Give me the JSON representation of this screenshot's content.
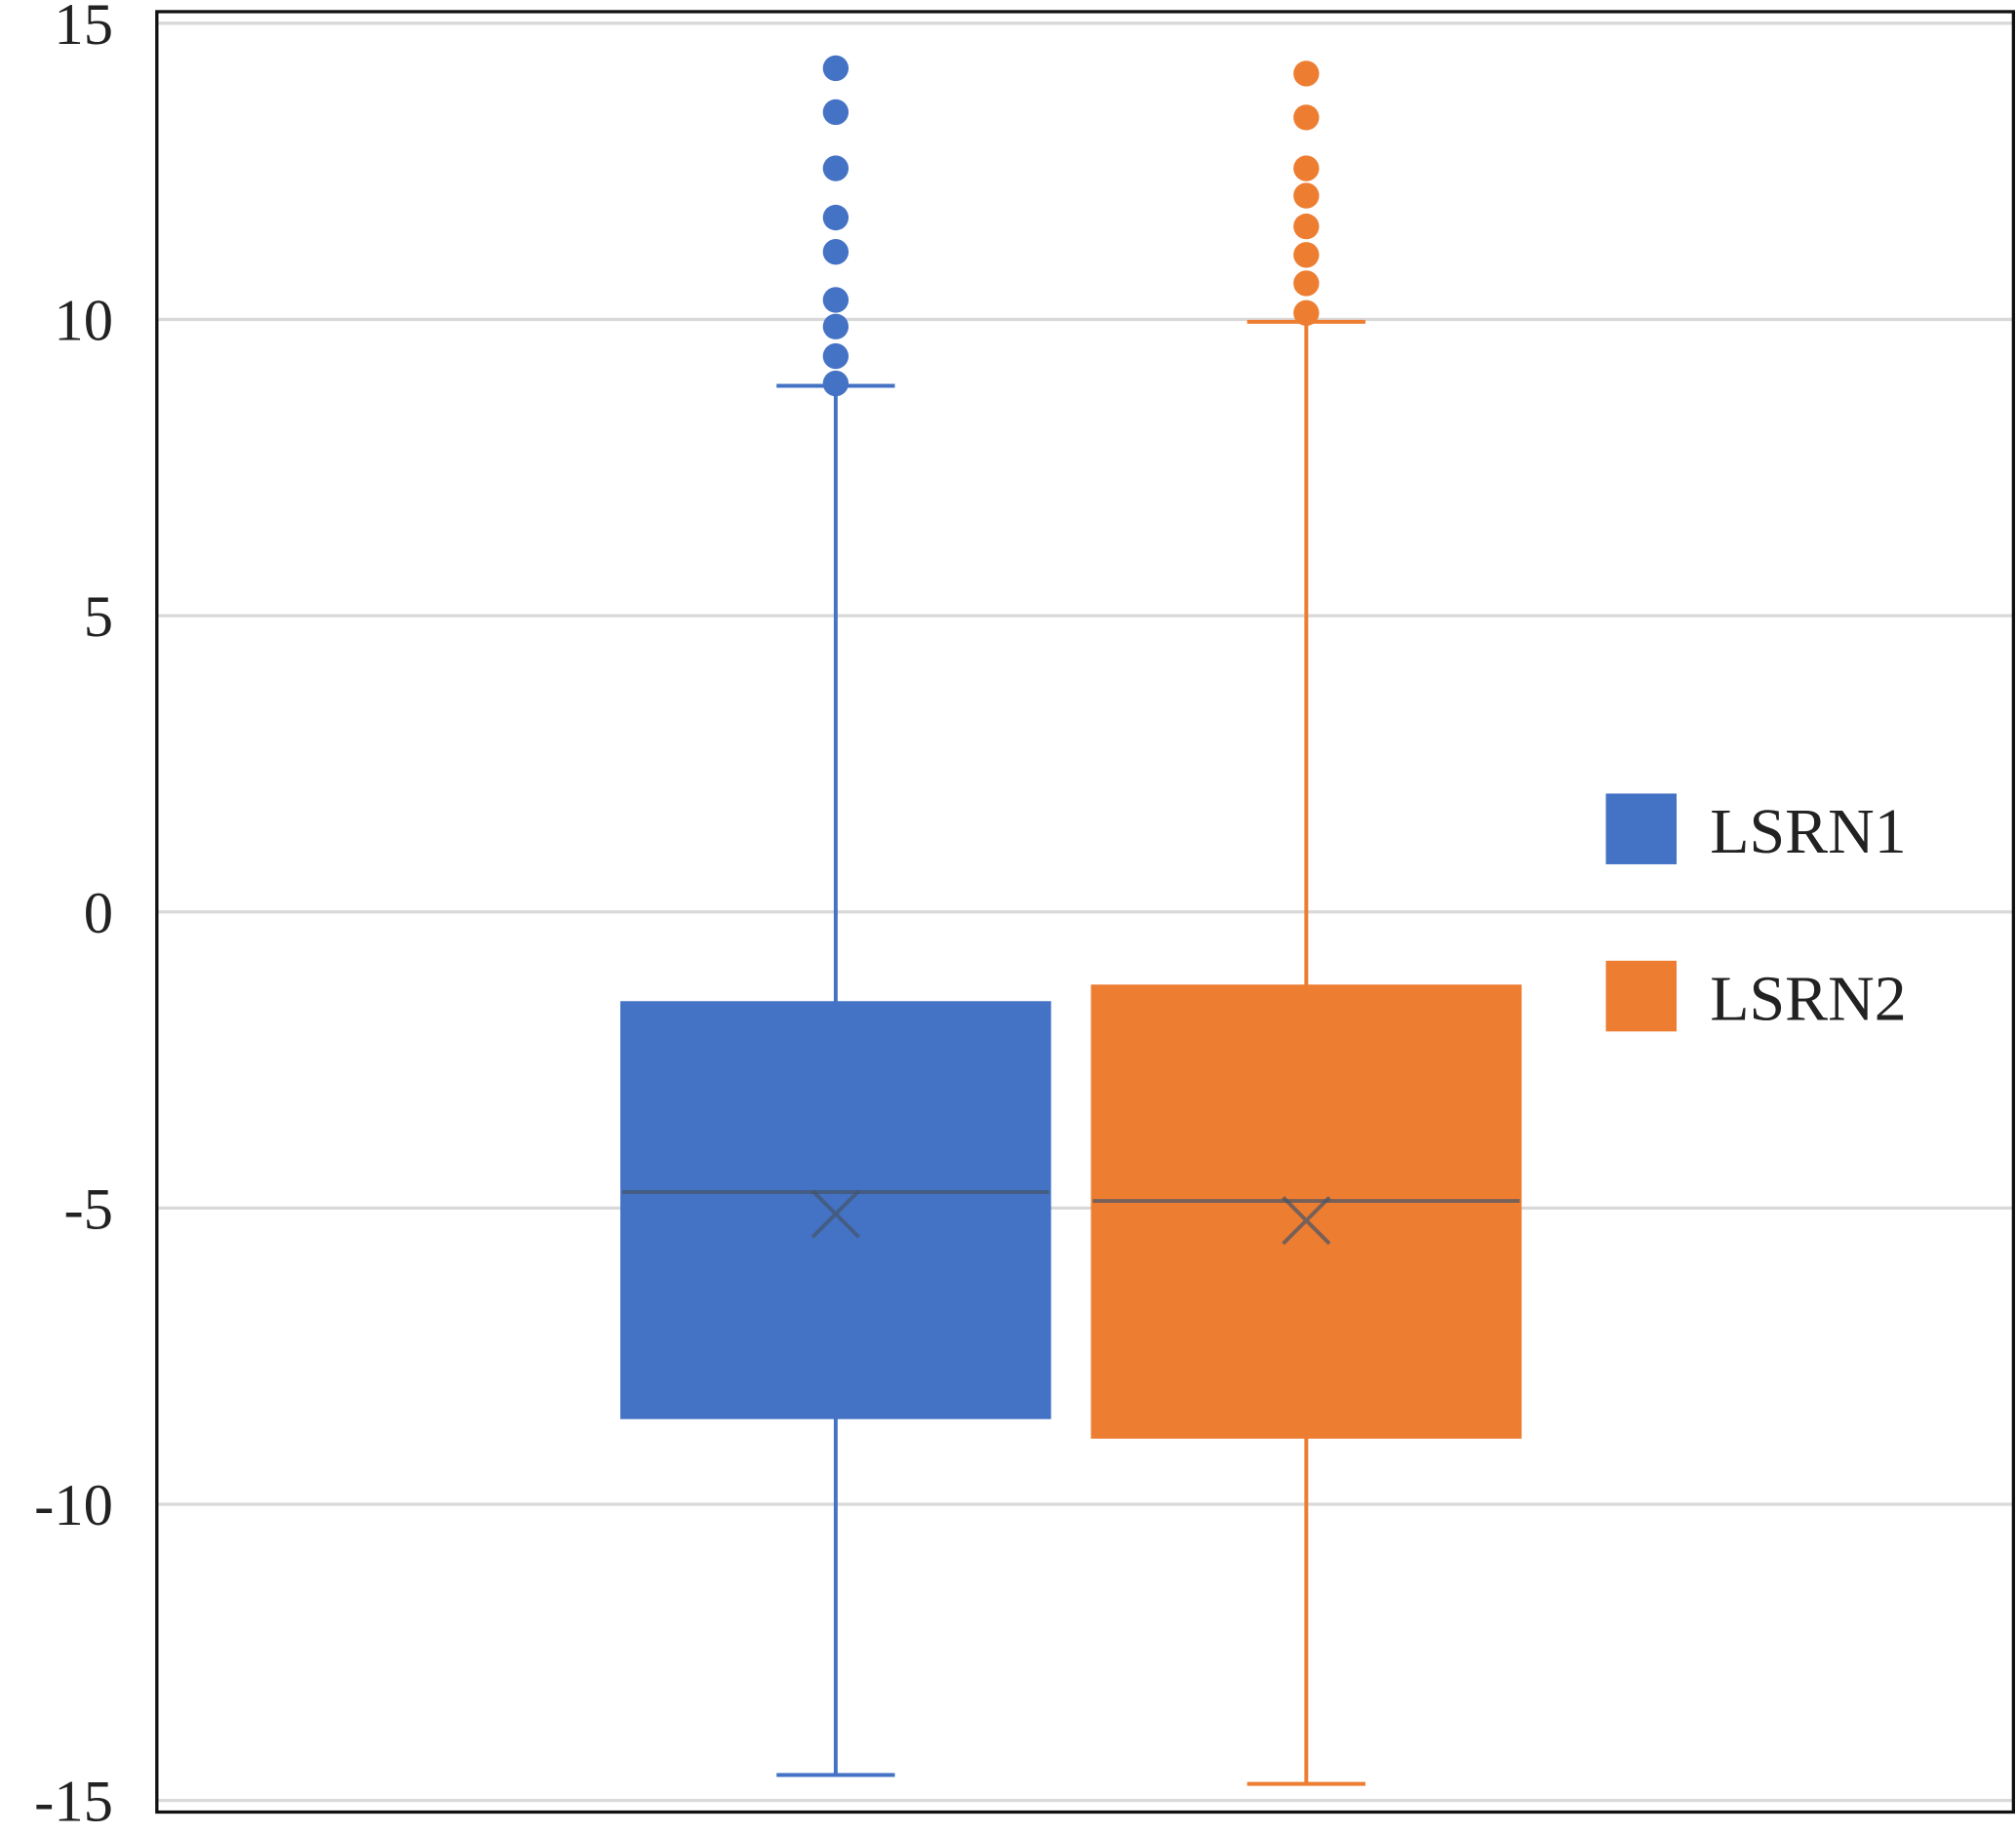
{
  "chart_data": {
    "type": "box",
    "title": "",
    "xlabel": "",
    "ylabel": "",
    "ylim": [
      -15,
      15
    ],
    "yticks": [
      "15",
      "10",
      "5",
      "0",
      "-5",
      "-10",
      "-15"
    ],
    "ytick_values": [
      15,
      10,
      5,
      0,
      -5,
      -10,
      -15
    ],
    "grid": true,
    "legend_position": "right",
    "series": [
      {
        "name": "LSRN1",
        "color": "#4472C4",
        "whisker_low": -14.57,
        "q1": -8.53,
        "median": -4.73,
        "mean": -5.1,
        "q3": -1.54,
        "whisker_high": 8.88,
        "outliers": [
          14.24,
          13.5,
          12.55,
          11.72,
          11.14,
          10.33,
          9.88,
          9.38,
          8.92
        ]
      },
      {
        "name": "LSRN2",
        "color": "#ED7D31",
        "whisker_low": -14.72,
        "q1": -8.86,
        "median": -4.88,
        "mean": -5.21,
        "q3": -1.26,
        "whisker_high": 9.96,
        "outliers": [
          14.15,
          13.41,
          12.55,
          12.09,
          11.57,
          11.09,
          10.61,
          10.11
        ]
      }
    ]
  }
}
